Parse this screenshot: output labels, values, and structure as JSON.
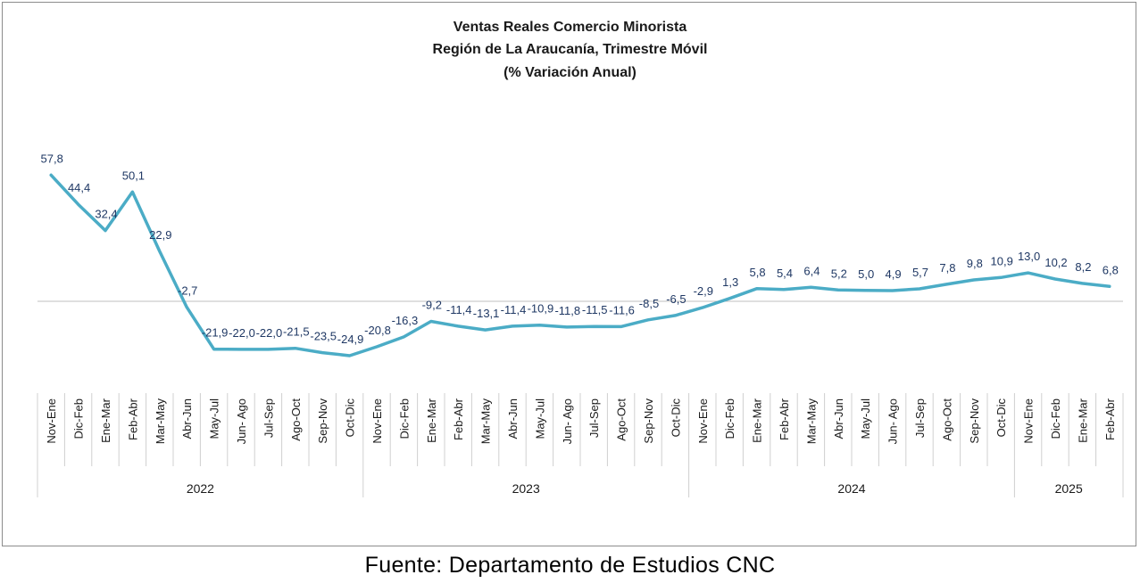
{
  "chart_data": {
    "type": "line",
    "title": [
      "Ventas Reales Comercio Minorista",
      "Región de La Araucanía, Trimestre Móvil",
      "(% Variación Anual)"
    ],
    "categories": [
      "Nov-Ene",
      "Dic-Feb",
      "Ene-Mar",
      "Feb-Abr",
      "Mar-May",
      "Abr-Jun",
      "May-Jul",
      "Jun- Ago",
      "Jul-Sep",
      "Ago-Oct",
      "Sep-Nov",
      "Oct-Dic",
      "Nov-Ene",
      "Dic-Feb",
      "Ene-Mar",
      "Feb-Abr",
      "Mar-May",
      "Abr-Jun",
      "May-Jul",
      "Jun- Ago",
      "Jul-Sep",
      "Ago-Oct",
      "Sep-Nov",
      "Oct-Dic",
      "Nov-Ene",
      "Dic-Feb",
      "Ene-Mar",
      "Feb-Abr",
      "Mar-May",
      "Abr-Jun",
      "May-Jul",
      "Jun- Ago",
      "Jul-Sep",
      "Ago-Oct",
      "Sep-Nov",
      "Oct-Dic",
      "Nov-Ene",
      "Dic-Feb",
      "Ene-Mar",
      "Feb-Abr"
    ],
    "groups": [
      {
        "label": "2022",
        "count": 12
      },
      {
        "label": "2023",
        "count": 12
      },
      {
        "label": "2024",
        "count": 12
      },
      {
        "label": "2025",
        "count": 4
      }
    ],
    "values": [
      57.8,
      44.4,
      32.4,
      50.1,
      22.9,
      -2.7,
      -21.9,
      -22.0,
      -22.0,
      -21.5,
      -23.5,
      -24.9,
      -20.8,
      -16.3,
      -9.2,
      -11.4,
      -13.1,
      -11.4,
      -10.9,
      -11.8,
      -11.5,
      -11.6,
      -8.5,
      -6.5,
      -2.9,
      1.3,
      5.8,
      5.4,
      6.4,
      5.2,
      5.0,
      4.9,
      5.7,
      7.8,
      9.8,
      10.9,
      13.0,
      10.2,
      8.2,
      6.8
    ],
    "value_labels": [
      "57,8",
      "44,4",
      "32,4",
      "50,1",
      "22,9",
      "-2,7",
      "-21,9",
      "-22,0",
      "-22,0",
      "-21,5",
      "-23,5",
      "-24,9",
      "-20,8",
      "-16,3",
      "-9,2",
      "-11,4",
      "-13,1",
      "-11,4",
      "-10,9",
      "-11,8",
      "-11,5",
      "-11,6",
      "-8,5",
      "-6,5",
      "-2,9",
      "1,3",
      "5,8",
      "5,4",
      "6,4",
      "5,2",
      "5,0",
      "4,9",
      "5,7",
      "7,8",
      "9,8",
      "10,9",
      "13,0",
      "10,2",
      "8,2",
      "6,8"
    ],
    "line_color": "#4bacc6",
    "grid": false,
    "legend": "none"
  },
  "source_note": "Fuente:  Departamento  de Estudios  CNC"
}
